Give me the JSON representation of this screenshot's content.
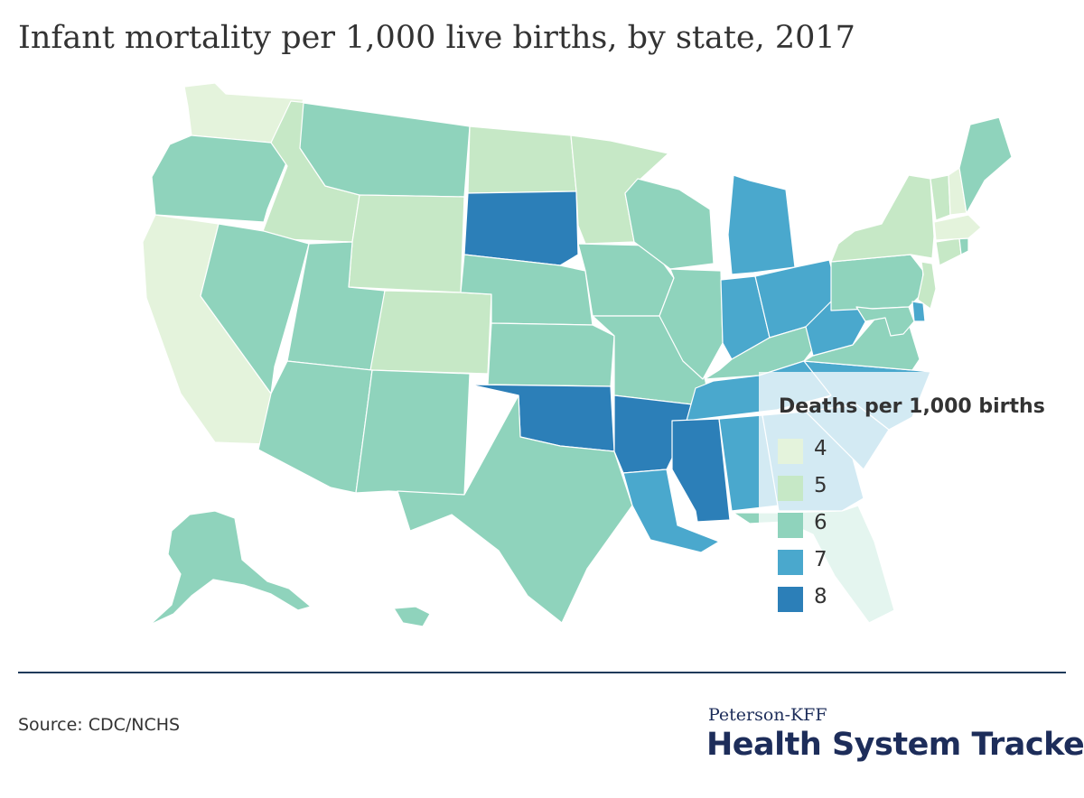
{
  "title": "Infant mortality per 1,000 live births, by state, 2017",
  "source": "Source: CDC/NCHS",
  "brand": {
    "top": "Peterson-KFF",
    "main": "Health System Tracker"
  },
  "legend": {
    "title": "Deaths per 1,000 births",
    "items": [
      {
        "label": "4",
        "color": "#e4f3dc"
      },
      {
        "label": "5",
        "color": "#c6e8c6"
      },
      {
        "label": "6",
        "color": "#8fd3bc"
      },
      {
        "label": "7",
        "color": "#4aa8cd"
      },
      {
        "label": "8",
        "color": "#2c7fb8"
      }
    ]
  },
  "chart_data": {
    "type": "choropleth",
    "title": "Infant mortality per 1,000 live births, by state, 2017",
    "legend_title": "Deaths per 1,000 births",
    "legend_placement": "bottom-right",
    "classes": [
      4,
      5,
      6,
      7,
      8
    ],
    "states": [
      {
        "state": "WA",
        "value": 4
      },
      {
        "state": "OR",
        "value": 6
      },
      {
        "state": "CA",
        "value": 4
      },
      {
        "state": "ID",
        "value": 5
      },
      {
        "state": "NV",
        "value": 6
      },
      {
        "state": "MT",
        "value": 6
      },
      {
        "state": "WY",
        "value": 5
      },
      {
        "state": "UT",
        "value": 6
      },
      {
        "state": "CO",
        "value": 5
      },
      {
        "state": "AZ",
        "value": 6
      },
      {
        "state": "NM",
        "value": 6
      },
      {
        "state": "ND",
        "value": 5
      },
      {
        "state": "SD",
        "value": 8
      },
      {
        "state": "NE",
        "value": 6
      },
      {
        "state": "KS",
        "value": 6
      },
      {
        "state": "OK",
        "value": 8
      },
      {
        "state": "TX",
        "value": 6
      },
      {
        "state": "MN",
        "value": 5
      },
      {
        "state": "IA",
        "value": 6
      },
      {
        "state": "MO",
        "value": 6
      },
      {
        "state": "AR",
        "value": 8
      },
      {
        "state": "LA",
        "value": 7
      },
      {
        "state": "WI",
        "value": 6
      },
      {
        "state": "IL",
        "value": 6
      },
      {
        "state": "MI",
        "value": 7
      },
      {
        "state": "IN",
        "value": 7
      },
      {
        "state": "OH",
        "value": 7
      },
      {
        "state": "KY",
        "value": 6
      },
      {
        "state": "TN",
        "value": 7
      },
      {
        "state": "MS",
        "value": 8
      },
      {
        "state": "AL",
        "value": 7
      },
      {
        "state": "GA",
        "value": 7
      },
      {
        "state": "FL",
        "value": 6
      },
      {
        "state": "SC",
        "value": 7
      },
      {
        "state": "NC",
        "value": 7
      },
      {
        "state": "VA",
        "value": 6
      },
      {
        "state": "WV",
        "value": 7
      },
      {
        "state": "PA",
        "value": 6
      },
      {
        "state": "NY",
        "value": 5
      },
      {
        "state": "NJ",
        "value": 5
      },
      {
        "state": "DE",
        "value": 7
      },
      {
        "state": "MD",
        "value": 6
      },
      {
        "state": "CT",
        "value": 5
      },
      {
        "state": "RI",
        "value": 6
      },
      {
        "state": "MA",
        "value": 4
      },
      {
        "state": "VT",
        "value": 5
      },
      {
        "state": "NH",
        "value": 4
      },
      {
        "state": "ME",
        "value": 6
      },
      {
        "state": "AK",
        "value": 6
      },
      {
        "state": "HI",
        "value": 6
      }
    ]
  }
}
